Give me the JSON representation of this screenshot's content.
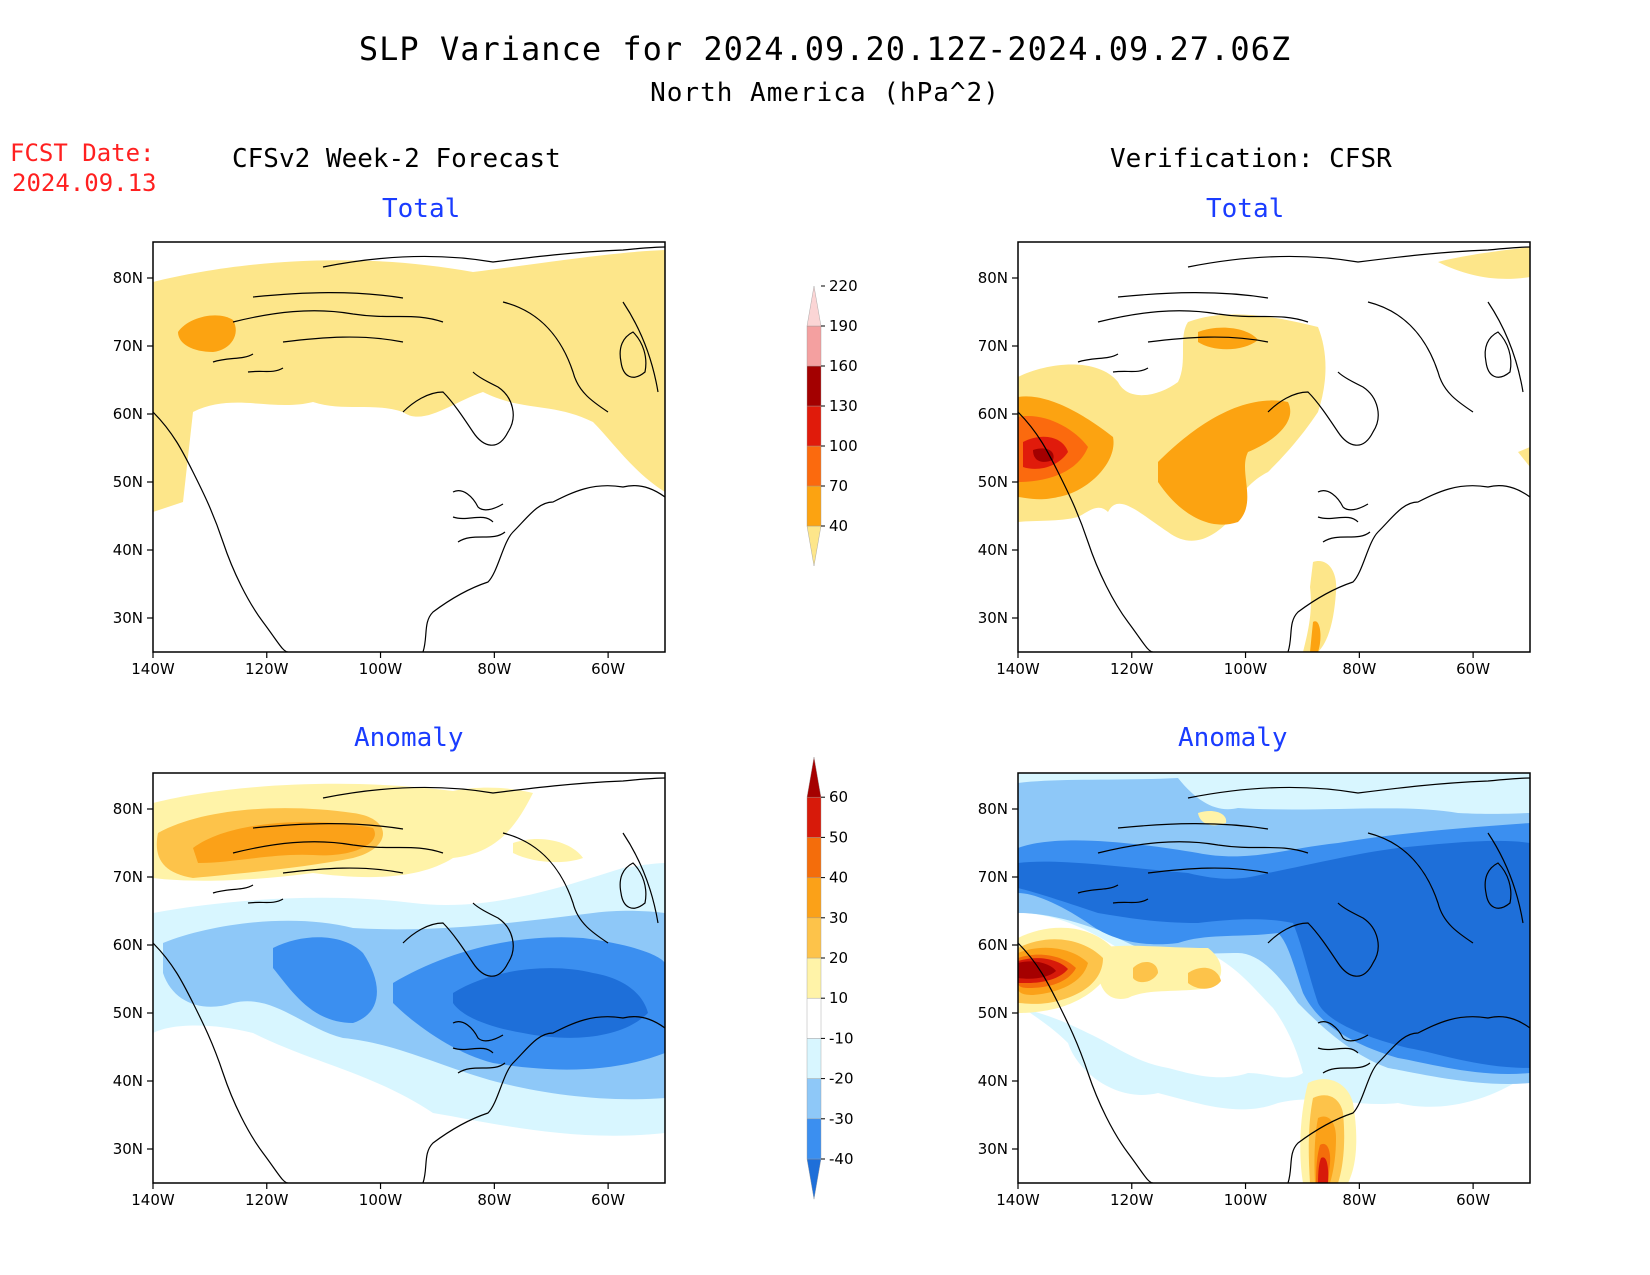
{
  "header": {
    "title": "SLP Variance for 2024.09.20.12Z-2024.09.27.06Z",
    "subtitle": "North America (hPa^2)",
    "fcst_label": "FCST Date:",
    "fcst_date": "2024.09.13"
  },
  "columns": {
    "left_title": "CFSv2 Week-2 Forecast",
    "right_title": "Verification: CFSR"
  },
  "panels": {
    "total_label": "Total",
    "anomaly_label": "Anomaly"
  },
  "axes": {
    "lon_ticks": [
      "140W",
      "120W",
      "100W",
      "80W",
      "60W"
    ],
    "lat_ticks": [
      "80N",
      "70N",
      "60N",
      "50N",
      "40N",
      "30N"
    ]
  },
  "legends": {
    "total": {
      "levels": [
        "40",
        "70",
        "100",
        "130",
        "160",
        "190",
        "220"
      ],
      "colors": [
        "#fde68a",
        "#fca311",
        "#fb6a0e",
        "#e01b0b",
        "#a30000",
        "#f4a0a0",
        "#fbd5d5"
      ]
    },
    "anomaly": {
      "levels": [
        "-40",
        "-30",
        "-20",
        "-10",
        "10",
        "20",
        "30",
        "40",
        "50",
        "60"
      ],
      "colors": [
        "#1e6fd9",
        "#3b8ff0",
        "#8ec8f8",
        "#d8f6ff",
        "#ffffff",
        "#fff3a8",
        "#fdc34a",
        "#fba118",
        "#f46d0b",
        "#d71a0a",
        "#a50000"
      ]
    }
  },
  "colors": {
    "fcst_red": "#ff2020",
    "panel_label_blue": "#1a3cff"
  }
}
